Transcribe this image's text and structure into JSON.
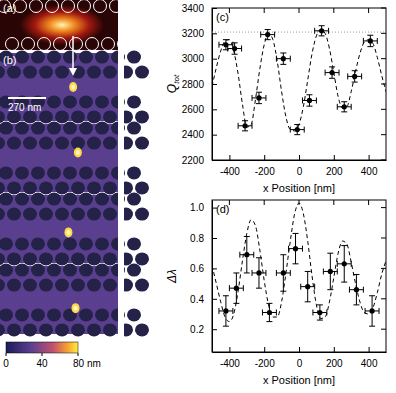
{
  "figure": {
    "panel_labels": [
      "(a)",
      "(b)"
    ],
    "scale_bar": "270 nm",
    "colorbar": {
      "range": [
        0,
        80
      ],
      "ticks": [
        0,
        40,
        {
          "value": 80,
          "label": "80 nm"
        }
      ]
    }
  },
  "chart_data": [
    {
      "type": "scatter",
      "panel_label": "(c)",
      "x_label": "x Position [nm]",
      "y_label": "Q",
      "y_label_subscript": "tot",
      "xlim": [
        -500,
        500
      ],
      "xticks": [
        -400,
        -200,
        0,
        200,
        400
      ],
      "ylim": [
        2200,
        3400
      ],
      "yticks": [
        2200,
        2400,
        2600,
        2800,
        3000,
        3200,
        3400
      ],
      "reference_line": 3210,
      "series": [
        {
          "type": "scatter",
          "marker": "circle",
          "x": [
            -420,
            -370,
            -310,
            -230,
            -180,
            -90,
            -10,
            60,
            130,
            190,
            260,
            320,
            410
          ],
          "values": [
            3110,
            3080,
            2470,
            2690,
            3190,
            3000,
            2440,
            2670,
            3220,
            2890,
            2620,
            2860,
            3140
          ],
          "x_error": [
            40,
            40,
            40,
            40,
            40,
            40,
            40,
            40,
            40,
            40,
            40,
            40,
            40
          ],
          "y_error": [
            40,
            45,
            40,
            45,
            40,
            45,
            40,
            45,
            40,
            45,
            40,
            45,
            45
          ]
        },
        {
          "type": "line",
          "line_style": "dashed",
          "x": [
            -500,
            -475,
            -450,
            -425,
            -400,
            -375,
            -350,
            -325,
            -300,
            -275,
            -250,
            -225,
            -200,
            -175,
            -150,
            -125,
            -100,
            -75,
            -50,
            -25,
            0,
            25,
            50,
            75,
            100,
            125,
            150,
            175,
            200,
            225,
            250,
            275,
            300,
            325,
            350,
            375,
            400,
            425,
            450,
            475,
            500
          ],
          "values": [
            2780,
            2930,
            3060,
            3140,
            3150,
            3060,
            2880,
            2640,
            2460,
            2480,
            2680,
            2920,
            3110,
            3200,
            3150,
            2980,
            2740,
            2540,
            2440,
            2430,
            2480,
            2620,
            2830,
            3040,
            3180,
            3230,
            3200,
            3080,
            2890,
            2700,
            2610,
            2620,
            2740,
            2900,
            3040,
            3130,
            3150,
            3120,
            3010,
            2870,
            2740
          ]
        }
      ]
    },
    {
      "type": "scatter",
      "panel_label": "(d)",
      "x_label": "x Position [nm]",
      "y_label": "Δλ",
      "xlim": [
        -500,
        500
      ],
      "xticks": [
        -400,
        -200,
        0,
        200,
        400
      ],
      "ylim": [
        0.05,
        1.05
      ],
      "yticks": [
        0.2,
        0.4,
        0.6,
        0.8,
        {
          "value": 1,
          "label": "1.0"
        }
      ],
      "series": [
        {
          "type": "scatter",
          "marker": "circle",
          "x": [
            -420,
            -360,
            -300,
            -230,
            -170,
            -90,
            -20,
            50,
            120,
            180,
            260,
            330,
            420
          ],
          "values": [
            0.32,
            0.47,
            0.69,
            0.57,
            0.31,
            0.57,
            0.73,
            0.48,
            0.31,
            0.58,
            0.63,
            0.46,
            0.32
          ],
          "x_error": [
            40,
            40,
            40,
            40,
            40,
            40,
            40,
            40,
            40,
            40,
            40,
            40,
            40
          ],
          "y_error": [
            0.1,
            0.1,
            0.12,
            0.1,
            0.06,
            0.12,
            0.1,
            0.1,
            0.05,
            0.12,
            0.12,
            0.1,
            0.1
          ]
        },
        {
          "type": "line",
          "line_style": "dashed",
          "x": [
            -500,
            -475,
            -450,
            -425,
            -400,
            -375,
            -350,
            -325,
            -300,
            -275,
            -250,
            -225,
            -200,
            -175,
            -150,
            -125,
            -100,
            -75,
            -50,
            -25,
            0,
            25,
            50,
            75,
            100,
            125,
            150,
            175,
            200,
            225,
            250,
            275,
            300,
            325,
            350,
            375,
            400,
            425,
            450,
            475,
            500
          ],
          "values": [
            0.62,
            0.5,
            0.38,
            0.28,
            0.25,
            0.3,
            0.45,
            0.65,
            0.83,
            0.92,
            0.88,
            0.72,
            0.52,
            0.36,
            0.28,
            0.28,
            0.38,
            0.57,
            0.78,
            0.96,
            1.03,
            0.96,
            0.78,
            0.55,
            0.36,
            0.27,
            0.28,
            0.38,
            0.54,
            0.7,
            0.78,
            0.76,
            0.64,
            0.5,
            0.38,
            0.31,
            0.3,
            0.34,
            0.44,
            0.56,
            0.65
          ]
        }
      ]
    }
  ]
}
